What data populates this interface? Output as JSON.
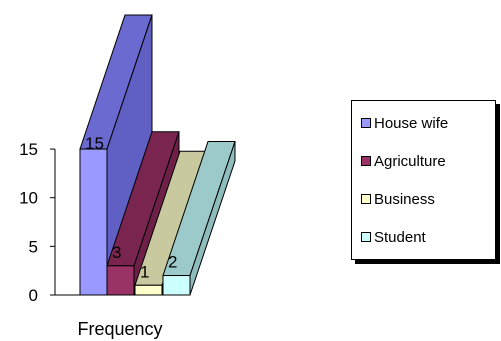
{
  "chart_data": {
    "type": "bar",
    "style": "3d",
    "categories": [
      "Frequency"
    ],
    "xlabel": "Frequency",
    "ylim": [
      0,
      15
    ],
    "yticks": [
      0,
      5,
      10,
      15
    ],
    "grid": false,
    "legend_position": "right",
    "series": [
      {
        "name": "House wife",
        "values": [
          15
        ],
        "color": "#9999ff",
        "shade": "#6a6ad0",
        "side": "#5f5fc4"
      },
      {
        "name": "Agriculture",
        "values": [
          3
        ],
        "color": "#993366",
        "shade": "#7a2550",
        "side": "#6e1f48"
      },
      {
        "name": "Business",
        "values": [
          1
        ],
        "color": "#ffffcc",
        "shade": "#c9c9a0",
        "side": "#bdbd95"
      },
      {
        "name": "Student",
        "values": [
          2
        ],
        "color": "#ccffff",
        "shade": "#9ccaca",
        "side": "#8fbcbc"
      }
    ]
  }
}
